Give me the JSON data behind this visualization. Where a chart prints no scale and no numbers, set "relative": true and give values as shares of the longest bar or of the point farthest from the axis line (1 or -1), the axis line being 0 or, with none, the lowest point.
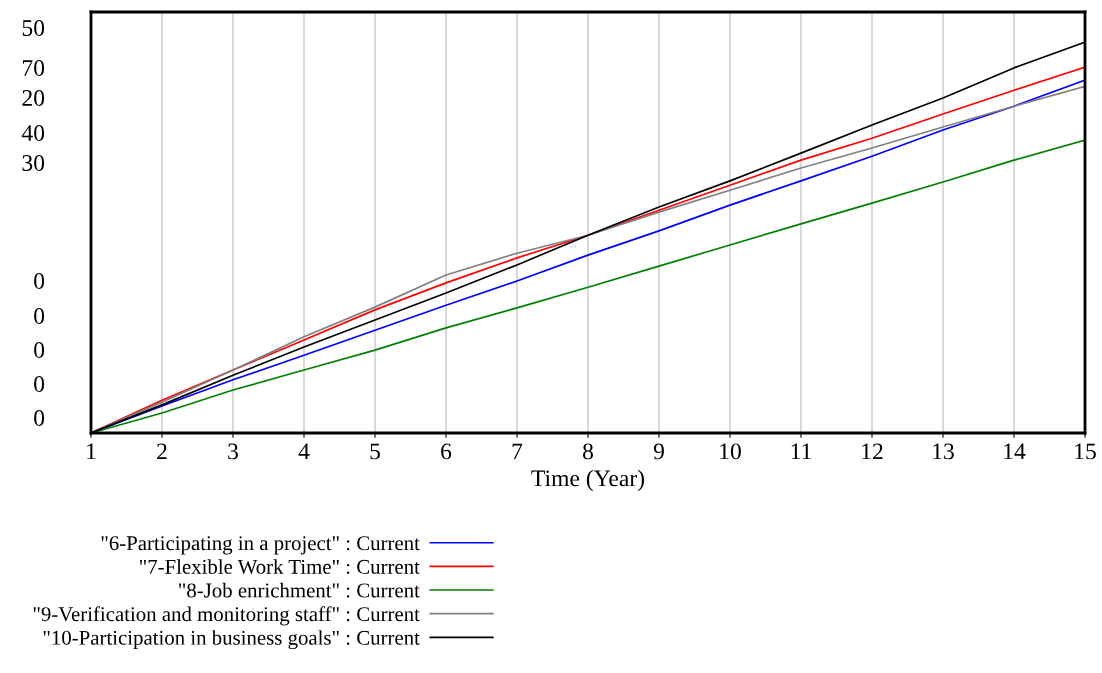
{
  "chart_data": {
    "type": "line",
    "relative": true,
    "xlabel": "Time (Year)",
    "x": [
      1,
      2,
      3,
      4,
      5,
      6,
      7,
      8,
      9,
      10,
      11,
      12,
      13,
      14,
      15
    ],
    "xlim": [
      1,
      15
    ],
    "xticks": [
      1,
      2,
      3,
      4,
      5,
      6,
      7,
      8,
      9,
      10,
      11,
      12,
      13,
      14,
      15
    ],
    "grid": "x",
    "legend": "bottom",
    "marker": "none",
    "line_style": "solid",
    "annotations": [
      "50",
      "70",
      "20",
      "40",
      "30",
      "0",
      "0",
      "0",
      "0",
      "0"
    ],
    "series": [
      {
        "name": "\"6-Participating in a project\" : Current",
        "color": "#0000ff",
        "values": [
          0,
          0.069,
          0.136,
          0.199,
          0.263,
          0.327,
          0.389,
          0.455,
          0.517,
          0.583,
          0.645,
          0.708,
          0.775,
          0.836,
          0.903
        ]
      },
      {
        "name": "\"7-Flexible Work Time\" : Current",
        "color": "#ff0000",
        "values": [
          0,
          0.084,
          0.161,
          0.238,
          0.315,
          0.384,
          0.448,
          0.506,
          0.57,
          0.634,
          0.698,
          0.754,
          0.816,
          0.877,
          0.936
        ]
      },
      {
        "name": "\"8-Job enrichment\" : Current",
        "color": "#008000",
        "values": [
          0,
          0.051,
          0.11,
          0.161,
          0.212,
          0.269,
          0.32,
          0.373,
          0.427,
          0.481,
          0.535,
          0.588,
          0.642,
          0.698,
          0.749
        ]
      },
      {
        "name": "\"9-Verification and monitoring staff\" : Current",
        "color": "#808080",
        "values": [
          0,
          0.079,
          0.161,
          0.246,
          0.322,
          0.404,
          0.46,
          0.506,
          0.565,
          0.621,
          0.678,
          0.729,
          0.783,
          0.836,
          0.887
        ]
      },
      {
        "name": "\"10-Participation in business goals\" : Current",
        "color": "#000000",
        "values": [
          0,
          0.072,
          0.148,
          0.22,
          0.289,
          0.358,
          0.43,
          0.506,
          0.578,
          0.645,
          0.716,
          0.788,
          0.857,
          0.934,
          1
        ]
      }
    ]
  }
}
